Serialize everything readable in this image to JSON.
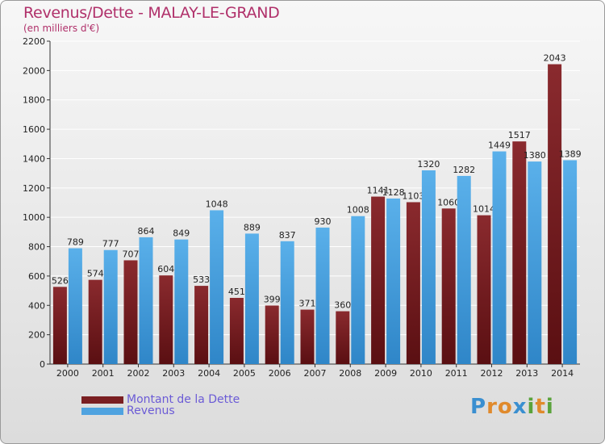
{
  "header": {
    "title": "Revenus/Dette - MALAY-LE-GRAND",
    "subtitle": "(en milliers d'€)"
  },
  "legend": {
    "dette_label": "Montant de la Dette",
    "revenus_label": "Revenus"
  },
  "logo": {
    "text": "Proxiti",
    "letters": [
      "P",
      "r",
      "o",
      "x",
      "i",
      "t",
      "i"
    ],
    "colors": [
      "#3a8fd0",
      "#e08a2c",
      "#e08a2c",
      "#3a8fd0",
      "#5aa33b",
      "#e08a2c",
      "#5aa33b"
    ]
  },
  "colors": {
    "dette": "#7a1f22",
    "revenus": "#4fa3e0",
    "gridline": "#ffffff",
    "axis": "#333333"
  },
  "chart_data": {
    "type": "bar",
    "categories": [
      "2000",
      "2001",
      "2002",
      "2003",
      "2004",
      "2005",
      "2006",
      "2007",
      "2008",
      "2009",
      "2010",
      "2011",
      "2012",
      "2013",
      "2014"
    ],
    "series": [
      {
        "name": "Montant de la Dette",
        "values": [
          526,
          574,
          707,
          604,
          533,
          451,
          399,
          371,
          360,
          1141,
          1103,
          1060,
          1014,
          1517,
          2043
        ]
      },
      {
        "name": "Revenus",
        "values": [
          789,
          777,
          864,
          849,
          1048,
          889,
          837,
          930,
          1008,
          1128,
          1320,
          1282,
          1449,
          1380,
          1389
        ]
      }
    ],
    "ylim": [
      0,
      2200
    ],
    "yticks": [
      0,
      200,
      400,
      600,
      800,
      1000,
      1200,
      1400,
      1600,
      1800,
      2000,
      2200
    ],
    "grid": true,
    "legend_position": "bottom-left"
  }
}
